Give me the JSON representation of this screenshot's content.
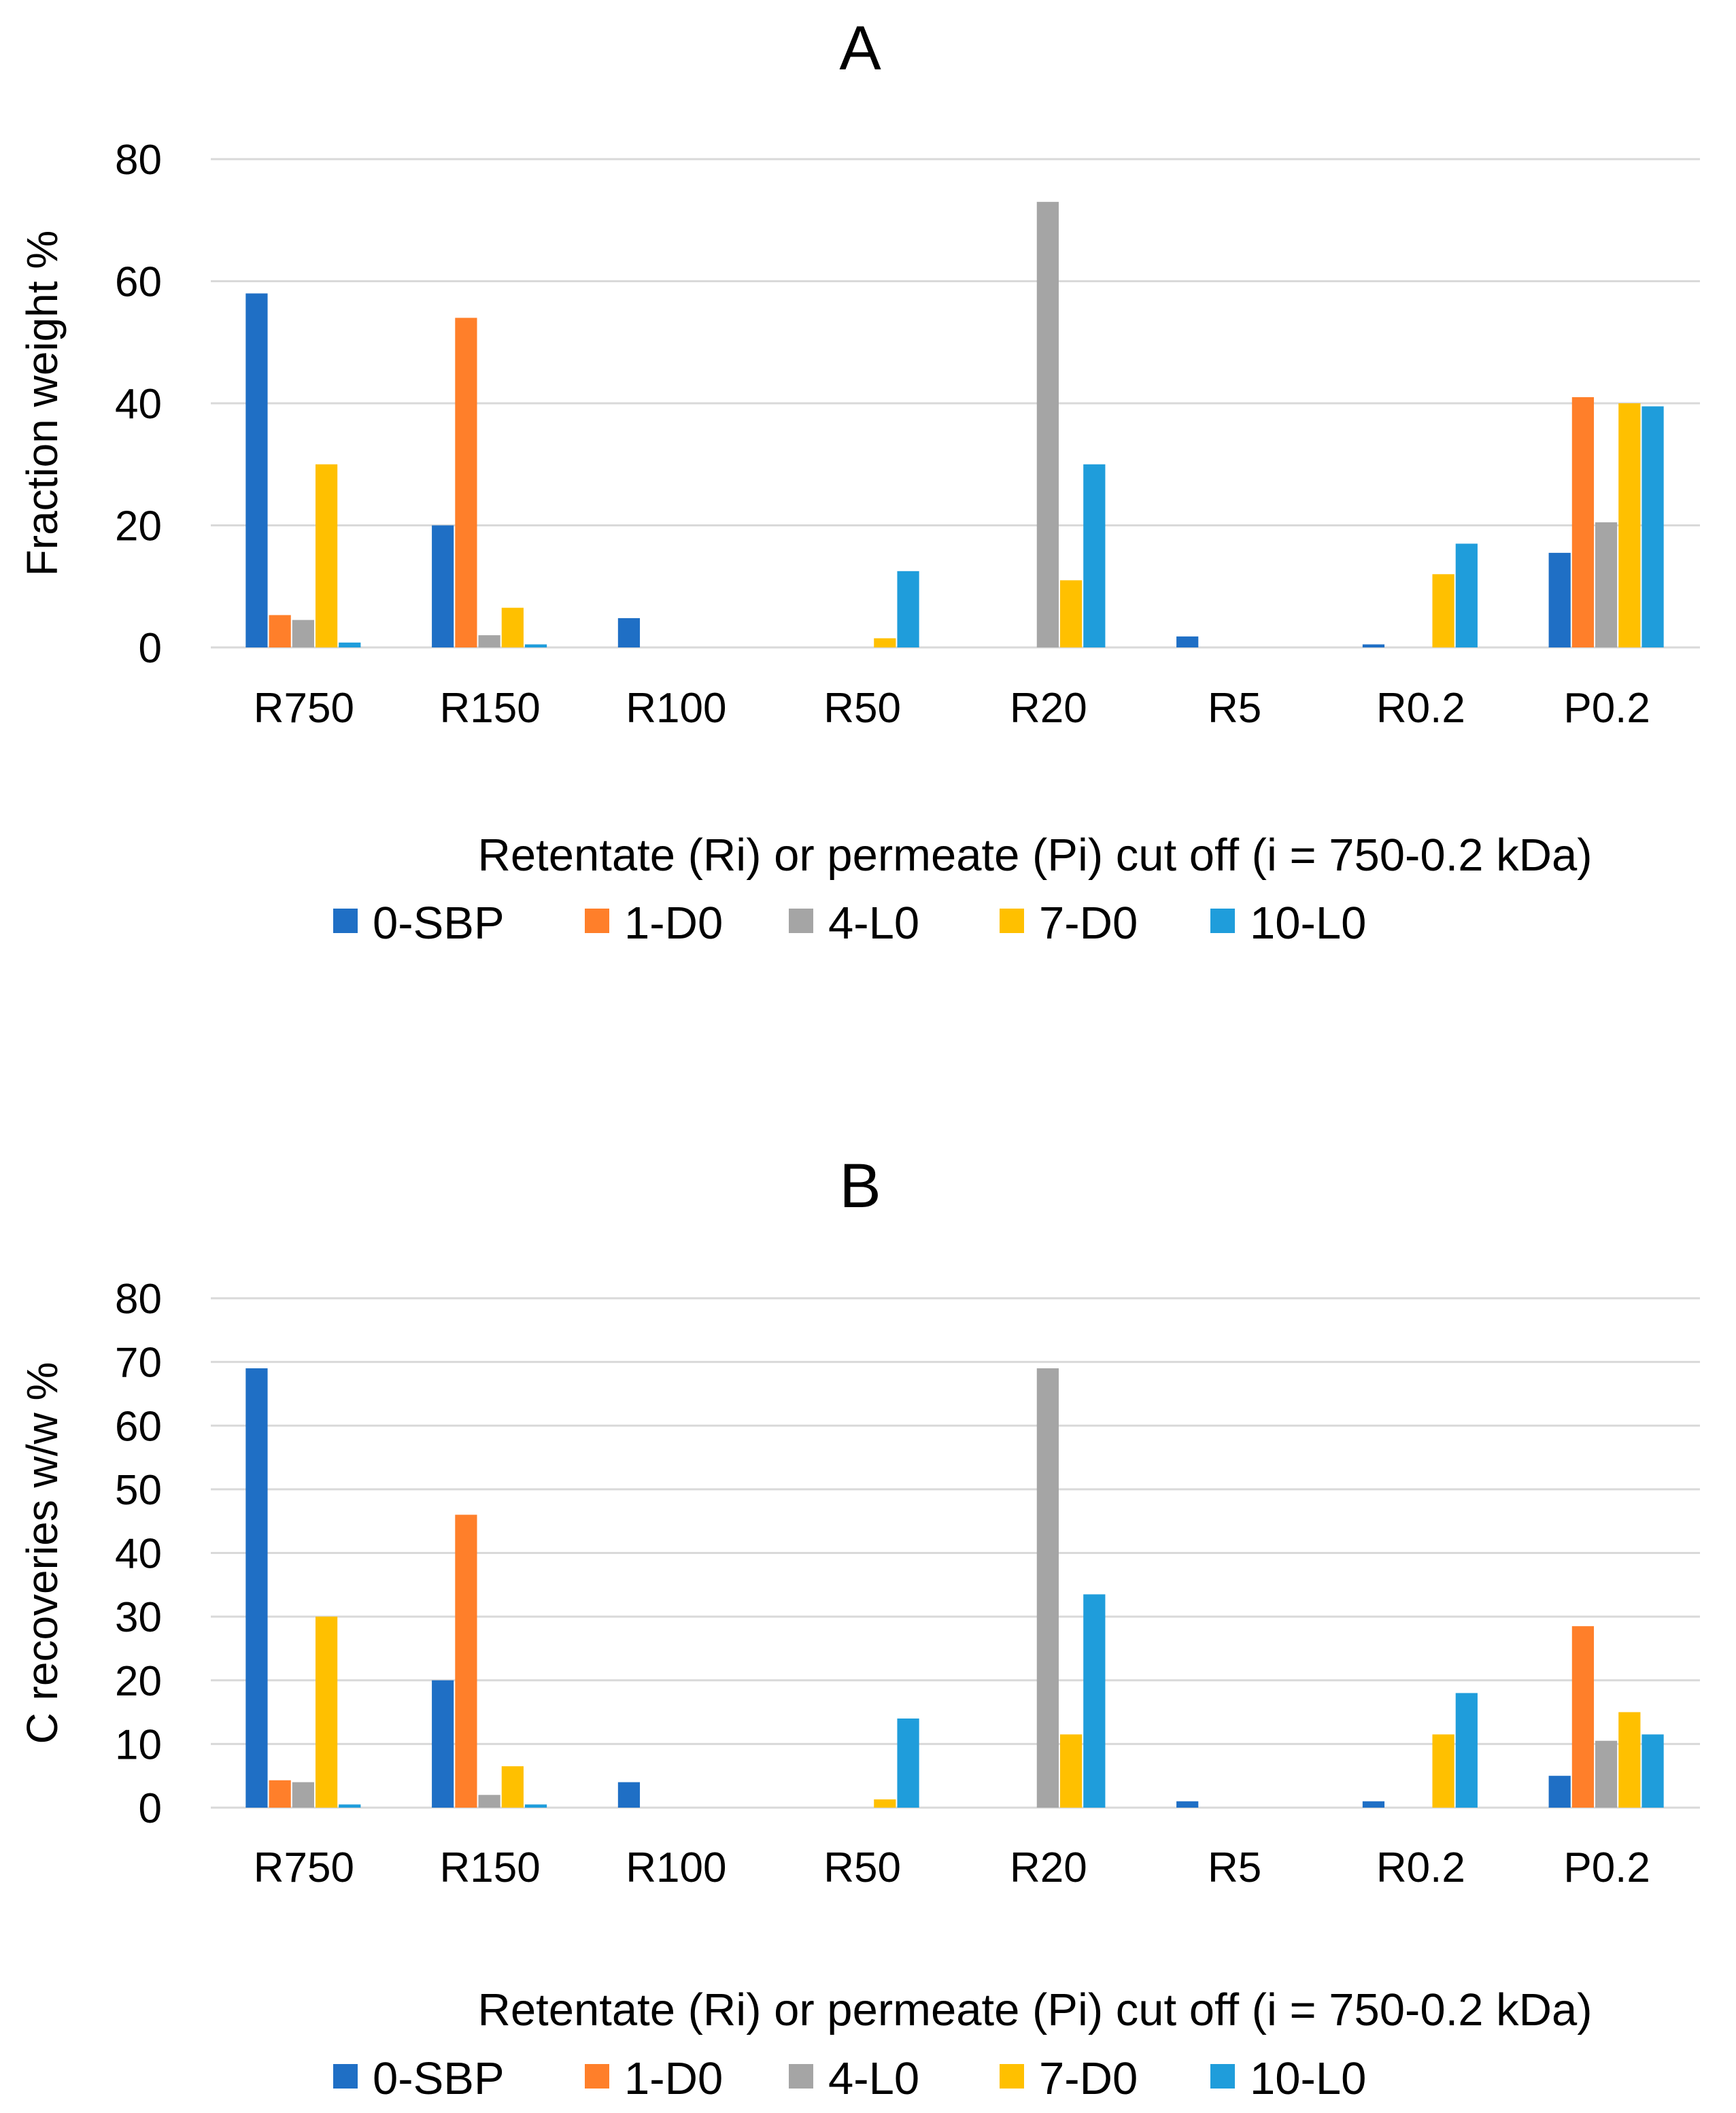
{
  "chart_data": [
    {
      "type": "bar",
      "title": "A",
      "xlabel": "Retentate (Ri) or permeate (Pi) cut off (i = 750-0.2 kDa)",
      "ylabel": "Fraction weight %",
      "ylim": [
        0,
        80
      ],
      "yticks": [
        0,
        20,
        40,
        60,
        80
      ],
      "grid": true,
      "legend_position": "bottom",
      "categories": [
        "R750",
        "R150",
        "R100",
        "R50",
        "R20",
        "R5",
        "R0.2",
        "P0.2"
      ],
      "series": [
        {
          "name": "0-SBP",
          "color": "#1F6FC5",
          "values": [
            58,
            20,
            4.8,
            0,
            0,
            1.8,
            0.5,
            15.5
          ]
        },
        {
          "name": "1-D0",
          "color": "#FF7F2A",
          "values": [
            5.3,
            54,
            0,
            0,
            0,
            0,
            0,
            41
          ]
        },
        {
          "name": "4-L0",
          "color": "#A5A5A5",
          "values": [
            4.5,
            2,
            0,
            0,
            73,
            0,
            0,
            20.5
          ]
        },
        {
          "name": "7-D0",
          "color": "#FFC000",
          "values": [
            30,
            6.5,
            0,
            1.5,
            11,
            0,
            12,
            40
          ]
        },
        {
          "name": "10-L0",
          "color": "#1F9DDB",
          "values": [
            0.8,
            0.5,
            0,
            12.5,
            30,
            0,
            17,
            39.5
          ]
        }
      ]
    },
    {
      "type": "bar",
      "title": "B",
      "xlabel": "Retentate (Ri) or permeate (Pi) cut off (i = 750-0.2 kDa)",
      "ylabel": "C recoveries w/w %",
      "ylim": [
        0,
        80
      ],
      "yticks": [
        0,
        10,
        20,
        30,
        40,
        50,
        60,
        70,
        80
      ],
      "grid": true,
      "legend_position": "bottom",
      "categories": [
        "R750",
        "R150",
        "R100",
        "R50",
        "R20",
        "R5",
        "R0.2",
        "P0.2"
      ],
      "series": [
        {
          "name": "0-SBP",
          "color": "#1F6FC5",
          "values": [
            69,
            20,
            4,
            0,
            0,
            1,
            1,
            5
          ]
        },
        {
          "name": "1-D0",
          "color": "#FF7F2A",
          "values": [
            4.3,
            46,
            0,
            0,
            0,
            0,
            0,
            28.5
          ]
        },
        {
          "name": "4-L0",
          "color": "#A5A5A5",
          "values": [
            4,
            2,
            0,
            0,
            69,
            0,
            0,
            10.5
          ]
        },
        {
          "name": "7-D0",
          "color": "#FFC000",
          "values": [
            30,
            6.5,
            0,
            1.3,
            11.5,
            0,
            11.5,
            15
          ]
        },
        {
          "name": "10-L0",
          "color": "#1F9DDB",
          "values": [
            0.5,
            0.5,
            0,
            14,
            33.5,
            0,
            18,
            11.5
          ]
        }
      ]
    }
  ]
}
